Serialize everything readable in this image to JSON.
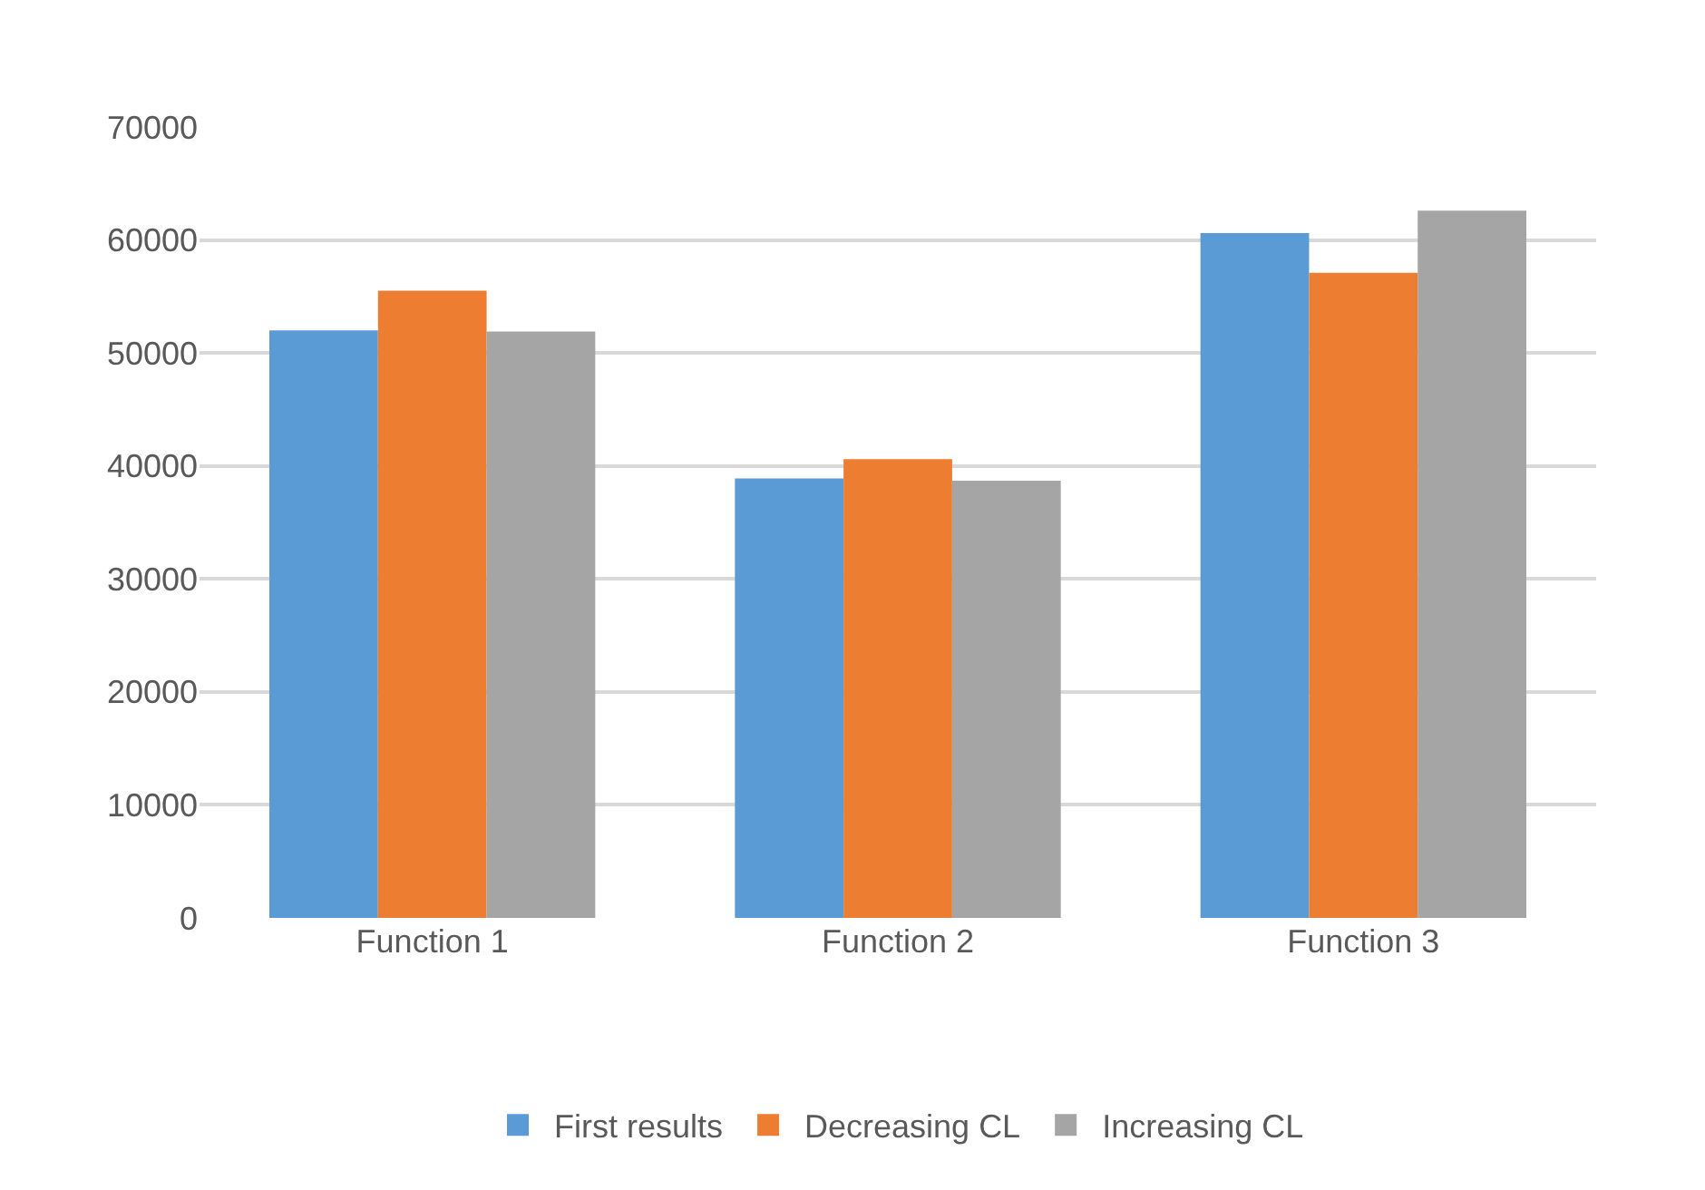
{
  "chart_data": {
    "type": "bar",
    "categories": [
      "Function 1",
      "Function 2",
      "Function 3"
    ],
    "series": [
      {
        "name": "First results",
        "color": "#5b9bd5",
        "values": [
          52000,
          38900,
          60600
        ]
      },
      {
        "name": "Decreasing CL",
        "color": "#ed7d31",
        "values": [
          55500,
          40600,
          57100
        ]
      },
      {
        "name": "Increasing CL",
        "color": "#a5a5a5",
        "values": [
          51900,
          38700,
          62600
        ]
      }
    ],
    "ylim": [
      0,
      70000
    ],
    "yticks": [
      0,
      10000,
      20000,
      30000,
      40000,
      50000,
      60000,
      70000
    ],
    "grid": "y",
    "legend": "bottom"
  }
}
